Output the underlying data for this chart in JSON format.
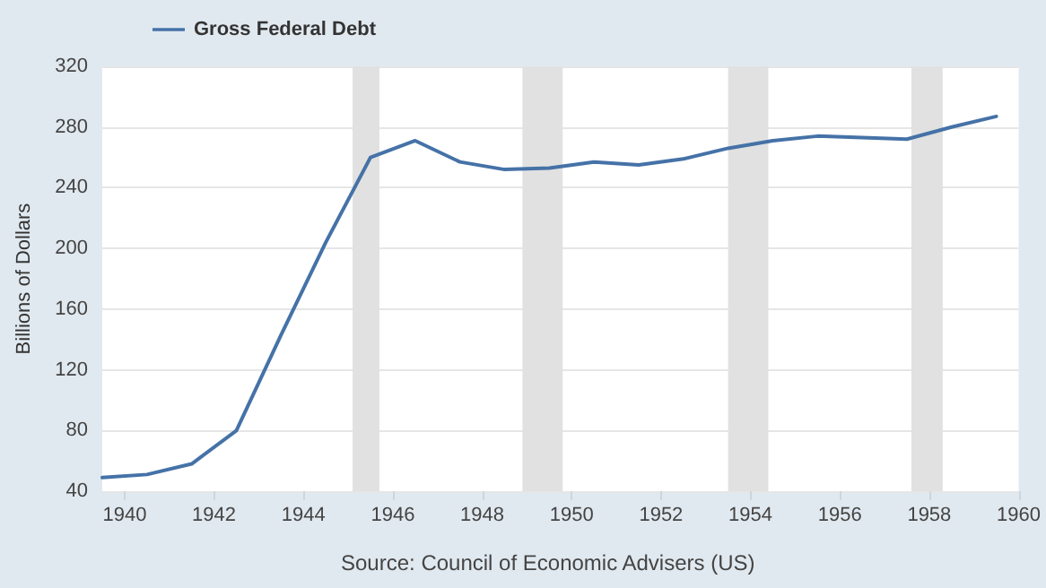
{
  "chart_data": {
    "type": "line",
    "ylabel": "Billions of Dollars",
    "x": [
      1939.5,
      1940.5,
      1941.5,
      1942.5,
      1943.5,
      1944.5,
      1945.5,
      1946.5,
      1947.5,
      1948.5,
      1949.5,
      1950.5,
      1951.5,
      1952.5,
      1953.5,
      1954.5,
      1955.5,
      1956.5,
      1957.5,
      1958.5,
      1959.5
    ],
    "series": [
      {
        "name": "Gross Federal Debt",
        "color": "#4572a7",
        "values": [
          49,
          51,
          58,
          80,
          143,
          204,
          260,
          271,
          257,
          252,
          253,
          257,
          255,
          259,
          266,
          271,
          274,
          273,
          272,
          280,
          287
        ]
      }
    ],
    "xlim": [
      1939.5,
      1960
    ],
    "xticks": [
      1940,
      1942,
      1944,
      1946,
      1948,
      1950,
      1952,
      1954,
      1956,
      1958,
      1960
    ],
    "ylim": [
      40,
      320
    ],
    "yticks": [
      40,
      80,
      120,
      160,
      200,
      240,
      280,
      320
    ],
    "bands": [
      {
        "axis": "x",
        "from": 1945.1,
        "to": 1945.7,
        "color": "#e1e1e1"
      },
      {
        "axis": "x",
        "from": 1948.9,
        "to": 1949.8,
        "color": "#e1e1e1"
      },
      {
        "axis": "x",
        "from": 1953.5,
        "to": 1954.4,
        "color": "#e1e1e1"
      },
      {
        "axis": "x",
        "from": 1957.6,
        "to": 1958.3,
        "color": "#e1e1e1"
      }
    ],
    "grid": "y",
    "legend": "top left",
    "marker": "none",
    "line_style": "solid",
    "annotations": [
      "Source: Council of Economic Advisers (US)"
    ]
  }
}
